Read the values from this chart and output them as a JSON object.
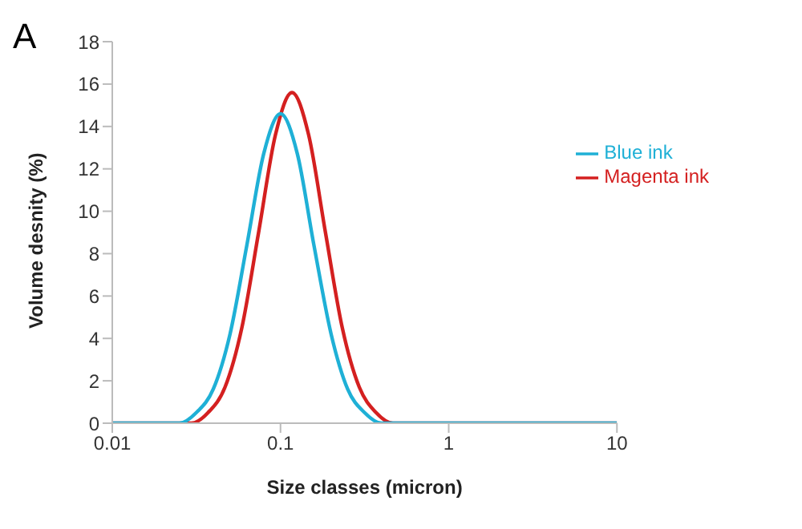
{
  "chart_data": {
    "type": "line",
    "xlabel": "Size classes (micron)",
    "ylabel": "Volume desnity (%)",
    "annotations": [
      "A"
    ],
    "log": "x",
    "xlim": [
      0.01,
      10
    ],
    "xticks": [
      0.01,
      0.1,
      1,
      10
    ],
    "ylim": [
      0,
      18
    ],
    "yticks": [
      0,
      2,
      4,
      6,
      8,
      10,
      12,
      14,
      16,
      18
    ],
    "grid": false,
    "legend": "right",
    "marker": "none",
    "line_style": "solid",
    "series": [
      {
        "name": "Magenta ink",
        "color": "#d42020",
        "x": [
          0.01,
          0.0295,
          0.0371,
          0.0468,
          0.0589,
          0.0741,
          0.0933,
          0.117,
          0.147,
          0.185,
          0.233,
          0.294,
          0.37,
          0.466,
          10
        ],
        "values": [
          0,
          0,
          0.5,
          1.7,
          4.5,
          9.0,
          13.6,
          15.6,
          13.6,
          9.0,
          4.5,
          1.7,
          0.5,
          0,
          0
        ]
      },
      {
        "name": "Blue ink",
        "color": "#1fb0d6",
        "x": [
          0.01,
          0.0251,
          0.0316,
          0.0398,
          0.0501,
          0.0631,
          0.0794,
          0.1,
          0.126,
          0.158,
          0.2,
          0.251,
          0.316,
          0.398,
          10
        ],
        "values": [
          0,
          0,
          0.5,
          1.6,
          4.2,
          8.4,
          12.7,
          14.6,
          12.7,
          8.4,
          4.2,
          1.6,
          0.5,
          0,
          0
        ]
      }
    ]
  }
}
